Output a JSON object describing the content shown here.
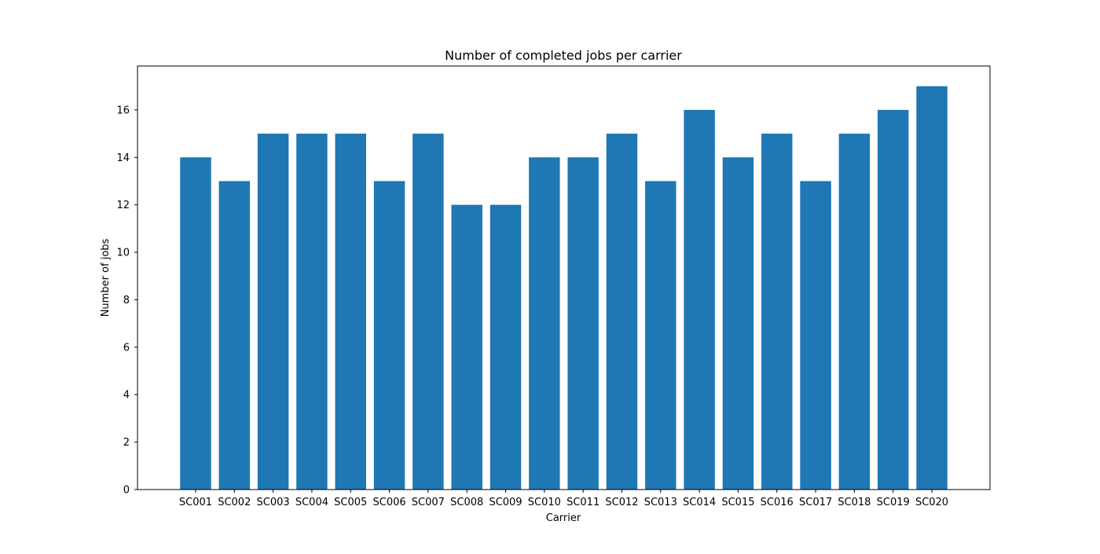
{
  "chart_data": {
    "type": "bar",
    "title": "Number of completed jobs per carrier",
    "xlabel": "Carrier",
    "ylabel": "Number of jobs",
    "categories": [
      "SC001",
      "SC002",
      "SC003",
      "SC004",
      "SC005",
      "SC006",
      "SC007",
      "SC008",
      "SC009",
      "SC010",
      "SC011",
      "SC012",
      "SC013",
      "SC014",
      "SC015",
      "SC016",
      "SC017",
      "SC018",
      "SC019",
      "SC020"
    ],
    "values": [
      14,
      13,
      15,
      15,
      15,
      13,
      15,
      12,
      12,
      14,
      14,
      15,
      13,
      16,
      14,
      15,
      13,
      15,
      16,
      17
    ],
    "yticks": [
      0,
      2,
      4,
      6,
      8,
      10,
      12,
      14,
      16
    ],
    "ylim": [
      0,
      17.85
    ],
    "grid": false,
    "legend": "none",
    "bar_color": "#1f77b4"
  }
}
